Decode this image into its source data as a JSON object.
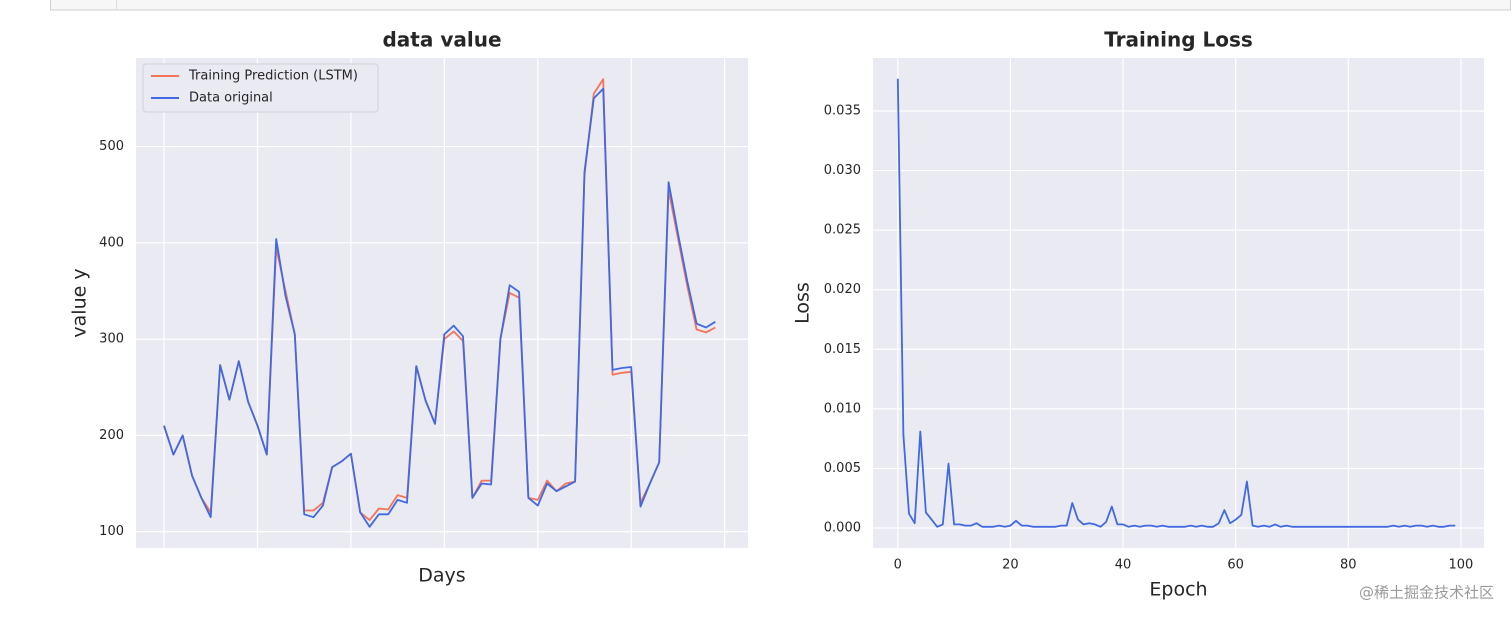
{
  "chart_data": [
    {
      "type": "line",
      "title": "data value",
      "xlabel": "Days",
      "ylabel": "value y",
      "x": [
        0,
        1,
        2,
        3,
        4,
        5,
        6,
        7,
        8,
        9,
        10,
        11,
        12,
        13,
        14,
        15,
        16,
        17,
        18,
        19,
        20,
        21,
        22,
        23,
        24,
        25,
        26,
        27,
        28,
        29,
        30,
        31,
        32,
        33,
        34,
        35,
        36,
        37,
        38,
        39,
        40,
        41,
        42,
        43,
        44,
        45,
        46,
        47,
        48,
        49,
        50,
        51,
        52,
        53,
        54,
        55,
        56,
        57,
        58,
        59
      ],
      "series": [
        {
          "name": "Training Prediction (LSTM)",
          "color": "#f4735a",
          "values": [
            210,
            180,
            200,
            158,
            135,
            120,
            273,
            237,
            277,
            235,
            210,
            180,
            395,
            350,
            305,
            122,
            122,
            130,
            167,
            173,
            181,
            120,
            112,
            124,
            123,
            138,
            135,
            272,
            236,
            212,
            300,
            308,
            298,
            135,
            153,
            153,
            300,
            348,
            343,
            135,
            133,
            153,
            142,
            150,
            152,
            470,
            555,
            570,
            263,
            265,
            266,
            130,
            150,
            172,
            455,
            405,
            355,
            310,
            307,
            312
          ]
        },
        {
          "name": "Data original",
          "color": "#4169e1",
          "values": [
            210,
            180,
            200,
            158,
            135,
            115,
            273,
            237,
            277,
            235,
            210,
            180,
            404,
            345,
            305,
            118,
            115,
            127,
            167,
            173,
            181,
            120,
            105,
            118,
            118,
            133,
            130,
            272,
            236,
            212,
            305,
            314,
            303,
            135,
            150,
            149,
            300,
            356,
            349,
            135,
            127,
            150,
            142,
            147,
            152,
            474,
            550,
            560,
            268,
            270,
            271,
            126,
            150,
            172,
            463,
            410,
            360,
            316,
            312,
            318
          ]
        }
      ],
      "xlim": [
        -3,
        62.5
      ],
      "xticks": [
        0,
        10,
        20,
        30,
        40,
        50,
        60
      ],
      "xtick_labels": false,
      "ylim": [
        83,
        592
      ],
      "yticks": [
        100,
        200,
        300,
        400,
        500
      ],
      "grid": true,
      "legend": "upper left"
    },
    {
      "type": "line",
      "title": "Training Loss",
      "xlabel": "Epoch",
      "ylabel": "Loss",
      "x": [
        0,
        1,
        2,
        3,
        4,
        5,
        6,
        7,
        8,
        9,
        10,
        11,
        12,
        13,
        14,
        15,
        16,
        17,
        18,
        19,
        20,
        21,
        22,
        23,
        24,
        25,
        26,
        27,
        28,
        29,
        30,
        31,
        32,
        33,
        34,
        35,
        36,
        37,
        38,
        39,
        40,
        41,
        42,
        43,
        44,
        45,
        46,
        47,
        48,
        49,
        50,
        51,
        52,
        53,
        54,
        55,
        56,
        57,
        58,
        59,
        60,
        61,
        62,
        63,
        64,
        65,
        66,
        67,
        68,
        69,
        70,
        71,
        72,
        73,
        74,
        75,
        76,
        77,
        78,
        79,
        80,
        81,
        82,
        83,
        84,
        85,
        86,
        87,
        88,
        89,
        90,
        91,
        92,
        93,
        94,
        95,
        96,
        97,
        98,
        99
      ],
      "series": [
        {
          "color": "#4169e1",
          "values": [
            0.0377,
            0.0078,
            0.0012,
            0.0004,
            0.0081,
            0.0013,
            0.0007,
            0.0001,
            0.0003,
            0.0054,
            0.0003,
            0.0003,
            0.0002,
            0.0002,
            0.0004,
            0.0001,
            0.0001,
            0.0001,
            0.0002,
            0.0001,
            0.0002,
            0.0006,
            0.0002,
            0.0002,
            0.0001,
            0.0001,
            0.0001,
            0.0001,
            0.0001,
            0.0002,
            0.0002,
            0.0021,
            0.0007,
            0.0003,
            0.0004,
            0.0003,
            0.0001,
            0.0005,
            0.0018,
            0.0003,
            0.0003,
            0.0001,
            0.0002,
            0.0001,
            0.0002,
            0.0002,
            0.0001,
            0.0002,
            0.0001,
            0.0001,
            0.0001,
            0.0001,
            0.0002,
            0.0001,
            0.0002,
            0.0001,
            0.0001,
            0.0004,
            0.0015,
            0.0004,
            0.0007,
            0.0011,
            0.0039,
            0.0002,
            0.0001,
            0.0002,
            0.0001,
            0.0003,
            0.0001,
            0.0002,
            0.0001,
            0.0001,
            0.0001,
            0.0001,
            0.0001,
            0.0001,
            0.0001,
            0.0001,
            0.0001,
            0.0001,
            0.0001,
            0.0001,
            0.0001,
            0.0001,
            0.0001,
            0.0001,
            0.0001,
            0.0001,
            0.0002,
            0.0001,
            0.0002,
            0.0001,
            0.0002,
            0.0002,
            0.0001,
            0.0002,
            0.0001,
            0.0001,
            0.0002,
            0.0002
          ]
        }
      ],
      "xlim": [
        -4.4,
        104.1
      ],
      "xticks": [
        0,
        20,
        40,
        60,
        80,
        100
      ],
      "ylim": [
        -0.00168,
        0.03945
      ],
      "yticks": [
        {
          "value": 0,
          "label": "0.000"
        },
        {
          "value": 0.005,
          "label": "0.005"
        },
        {
          "value": 0.01,
          "label": "0.010"
        },
        {
          "value": 0.015,
          "label": "0.015"
        },
        {
          "value": 0.02,
          "label": "0.020"
        },
        {
          "value": 0.025,
          "label": "0.025"
        },
        {
          "value": 0.03,
          "label": "0.030"
        },
        {
          "value": 0.035,
          "label": "0.035"
        }
      ],
      "grid": true
    }
  ],
  "watermark": "@稀土掘金技术社区"
}
